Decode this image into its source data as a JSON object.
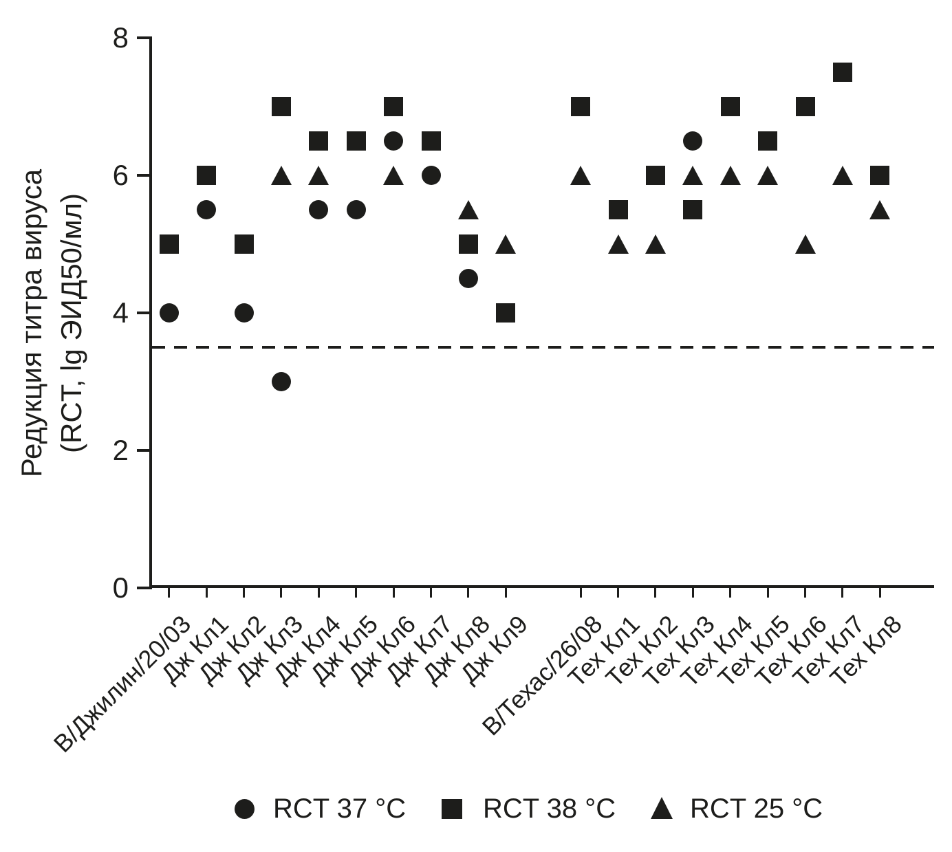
{
  "chart_data": {
    "type": "scatter",
    "ylabel_line1": "Редукция титра вируса",
    "ylabel_line2": "(RCT, lg ЭИД50/мл)",
    "xlabel": "",
    "ylim": [
      0,
      8
    ],
    "yticks": [
      8,
      6,
      4,
      2,
      0
    ],
    "grid": false,
    "threshold_line": {
      "value": 3.5,
      "style": "dashed"
    },
    "categories": [
      "В/Джилин/20/03",
      "Дж Кл1",
      "Дж Кл2",
      "Дж Кл3",
      "Дж Кл4",
      "Дж Кл5",
      "Дж Кл6",
      "Дж Кл7",
      "Дж Кл8",
      "Дж Кл9",
      "В/Техас/26/08",
      "Тех Кл1",
      "Тех Кл2",
      "Тех Кл3",
      "Тех Кл4",
      "Тех Кл5",
      "Тех Кл6",
      "Тех Кл7",
      "Тех Кл8"
    ],
    "group_gap_after_index": 9,
    "series": [
      {
        "name": "RCT 37 °C",
        "marker": "circle",
        "values": [
          4.0,
          5.5,
          4.0,
          3.0,
          5.5,
          5.5,
          6.5,
          6.0,
          4.5,
          null,
          null,
          null,
          null,
          6.5,
          null,
          null,
          null,
          null,
          null
        ]
      },
      {
        "name": "RCT 38 °C",
        "marker": "square",
        "values": [
          5.0,
          6.0,
          5.0,
          7.0,
          6.5,
          6.5,
          7.0,
          6.5,
          5.0,
          4.0,
          7.0,
          5.5,
          6.0,
          5.5,
          7.0,
          6.5,
          7.0,
          7.5,
          6.0
        ]
      },
      {
        "name": "RCT 25 °C",
        "marker": "triangle",
        "values": [
          null,
          null,
          null,
          6.0,
          6.0,
          null,
          6.0,
          null,
          5.5,
          5.0,
          6.0,
          5.0,
          5.0,
          6.0,
          6.0,
          6.0,
          5.0,
          6.0,
          5.5
        ]
      }
    ],
    "legend": [
      {
        "label": "RCT 37 °C",
        "marker": "circle"
      },
      {
        "label": "RCT 38 °C",
        "marker": "square"
      },
      {
        "label": "RCT 25 °C",
        "marker": "triangle"
      }
    ],
    "legend_position": "bottom",
    "marker_color": "#1d1d1b",
    "background": "#ffffff"
  }
}
